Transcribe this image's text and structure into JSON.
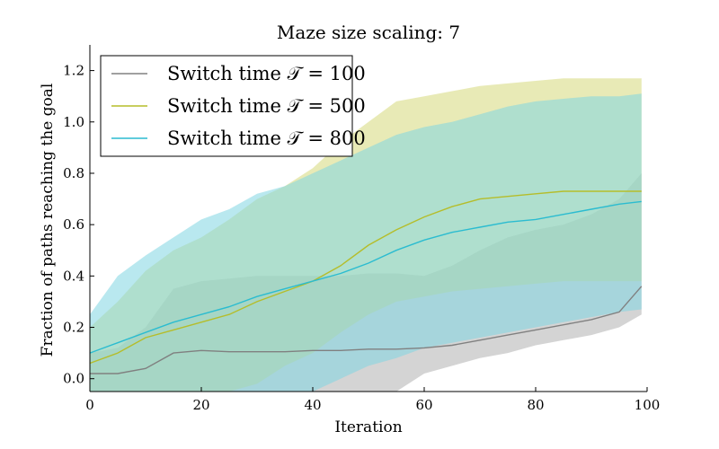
{
  "chart_data": {
    "type": "line",
    "title": "Maze size scaling: 7",
    "xlabel": "Iteration",
    "ylabel": "Fraction of paths reaching the goal",
    "xlim": [
      0,
      100
    ],
    "ylim": [
      -0.05,
      1.3
    ],
    "xticks": [
      0,
      20,
      40,
      60,
      80,
      100
    ],
    "yticks": [
      0.0,
      0.2,
      0.4,
      0.6,
      0.8,
      1.0,
      1.2
    ],
    "xtick_labels": [
      "0",
      "20",
      "40",
      "60",
      "80",
      "100"
    ],
    "ytick_labels": [
      "0.0",
      "0.2",
      "0.4",
      "0.6",
      "0.8",
      "1.0",
      "1.2"
    ],
    "grid": false,
    "legend_position": "top-left",
    "series": [
      {
        "name": "Switch time 𝒯 = 100",
        "color": "#808080",
        "band_color": "#b0b0b0",
        "x": [
          0,
          5,
          10,
          15,
          20,
          25,
          30,
          35,
          40,
          45,
          50,
          55,
          60,
          65,
          70,
          75,
          80,
          85,
          90,
          95,
          99
        ],
        "mean": [
          0.02,
          0.02,
          0.04,
          0.1,
          0.11,
          0.105,
          0.105,
          0.105,
          0.11,
          0.11,
          0.115,
          0.115,
          0.12,
          0.13,
          0.15,
          0.17,
          0.19,
          0.21,
          0.23,
          0.26,
          0.36
        ],
        "lower": [
          -0.05,
          -0.05,
          -0.05,
          -0.05,
          -0.05,
          -0.05,
          -0.05,
          -0.05,
          -0.05,
          -0.05,
          -0.05,
          -0.05,
          0.02,
          0.05,
          0.08,
          0.1,
          0.13,
          0.15,
          0.17,
          0.2,
          0.25
        ],
        "upper": [
          0.1,
          0.12,
          0.2,
          0.35,
          0.38,
          0.39,
          0.4,
          0.4,
          0.4,
          0.4,
          0.41,
          0.41,
          0.4,
          0.44,
          0.5,
          0.55,
          0.58,
          0.6,
          0.64,
          0.7,
          0.8
        ]
      },
      {
        "name": "Switch time 𝒯 = 500",
        "color": "#b5bd2a",
        "band_color": "#d6d97a",
        "x": [
          0,
          5,
          10,
          15,
          20,
          25,
          30,
          35,
          40,
          45,
          50,
          55,
          60,
          65,
          70,
          75,
          80,
          85,
          90,
          95,
          99
        ],
        "mean": [
          0.06,
          0.1,
          0.16,
          0.19,
          0.22,
          0.25,
          0.3,
          0.34,
          0.38,
          0.44,
          0.52,
          0.58,
          0.63,
          0.67,
          0.7,
          0.71,
          0.72,
          0.73,
          0.73,
          0.73,
          0.73
        ],
        "lower": [
          -0.05,
          -0.05,
          -0.05,
          -0.05,
          -0.05,
          -0.05,
          -0.02,
          0.05,
          0.1,
          0.18,
          0.25,
          0.3,
          0.32,
          0.34,
          0.35,
          0.36,
          0.37,
          0.38,
          0.38,
          0.38,
          0.38
        ],
        "upper": [
          0.2,
          0.3,
          0.42,
          0.5,
          0.55,
          0.62,
          0.7,
          0.75,
          0.82,
          0.92,
          1.0,
          1.08,
          1.1,
          1.12,
          1.14,
          1.15,
          1.16,
          1.17,
          1.17,
          1.17,
          1.17
        ]
      },
      {
        "name": "Switch time 𝒯 = 800",
        "color": "#2bbcd0",
        "band_color": "#80d6e2",
        "x": [
          0,
          5,
          10,
          15,
          20,
          25,
          30,
          35,
          40,
          45,
          50,
          55,
          60,
          65,
          70,
          75,
          80,
          85,
          90,
          95,
          99
        ],
        "mean": [
          0.1,
          0.14,
          0.18,
          0.22,
          0.25,
          0.28,
          0.32,
          0.35,
          0.38,
          0.41,
          0.45,
          0.5,
          0.54,
          0.57,
          0.59,
          0.61,
          0.62,
          0.64,
          0.66,
          0.68,
          0.69
        ],
        "lower": [
          -0.05,
          -0.05,
          -0.05,
          -0.05,
          -0.05,
          -0.05,
          -0.05,
          -0.05,
          -0.05,
          0.0,
          0.05,
          0.08,
          0.12,
          0.14,
          0.16,
          0.18,
          0.2,
          0.22,
          0.24,
          0.26,
          0.27
        ],
        "upper": [
          0.25,
          0.4,
          0.48,
          0.55,
          0.62,
          0.66,
          0.72,
          0.75,
          0.8,
          0.85,
          0.9,
          0.95,
          0.98,
          1.0,
          1.03,
          1.06,
          1.08,
          1.09,
          1.1,
          1.1,
          1.11
        ]
      }
    ]
  }
}
